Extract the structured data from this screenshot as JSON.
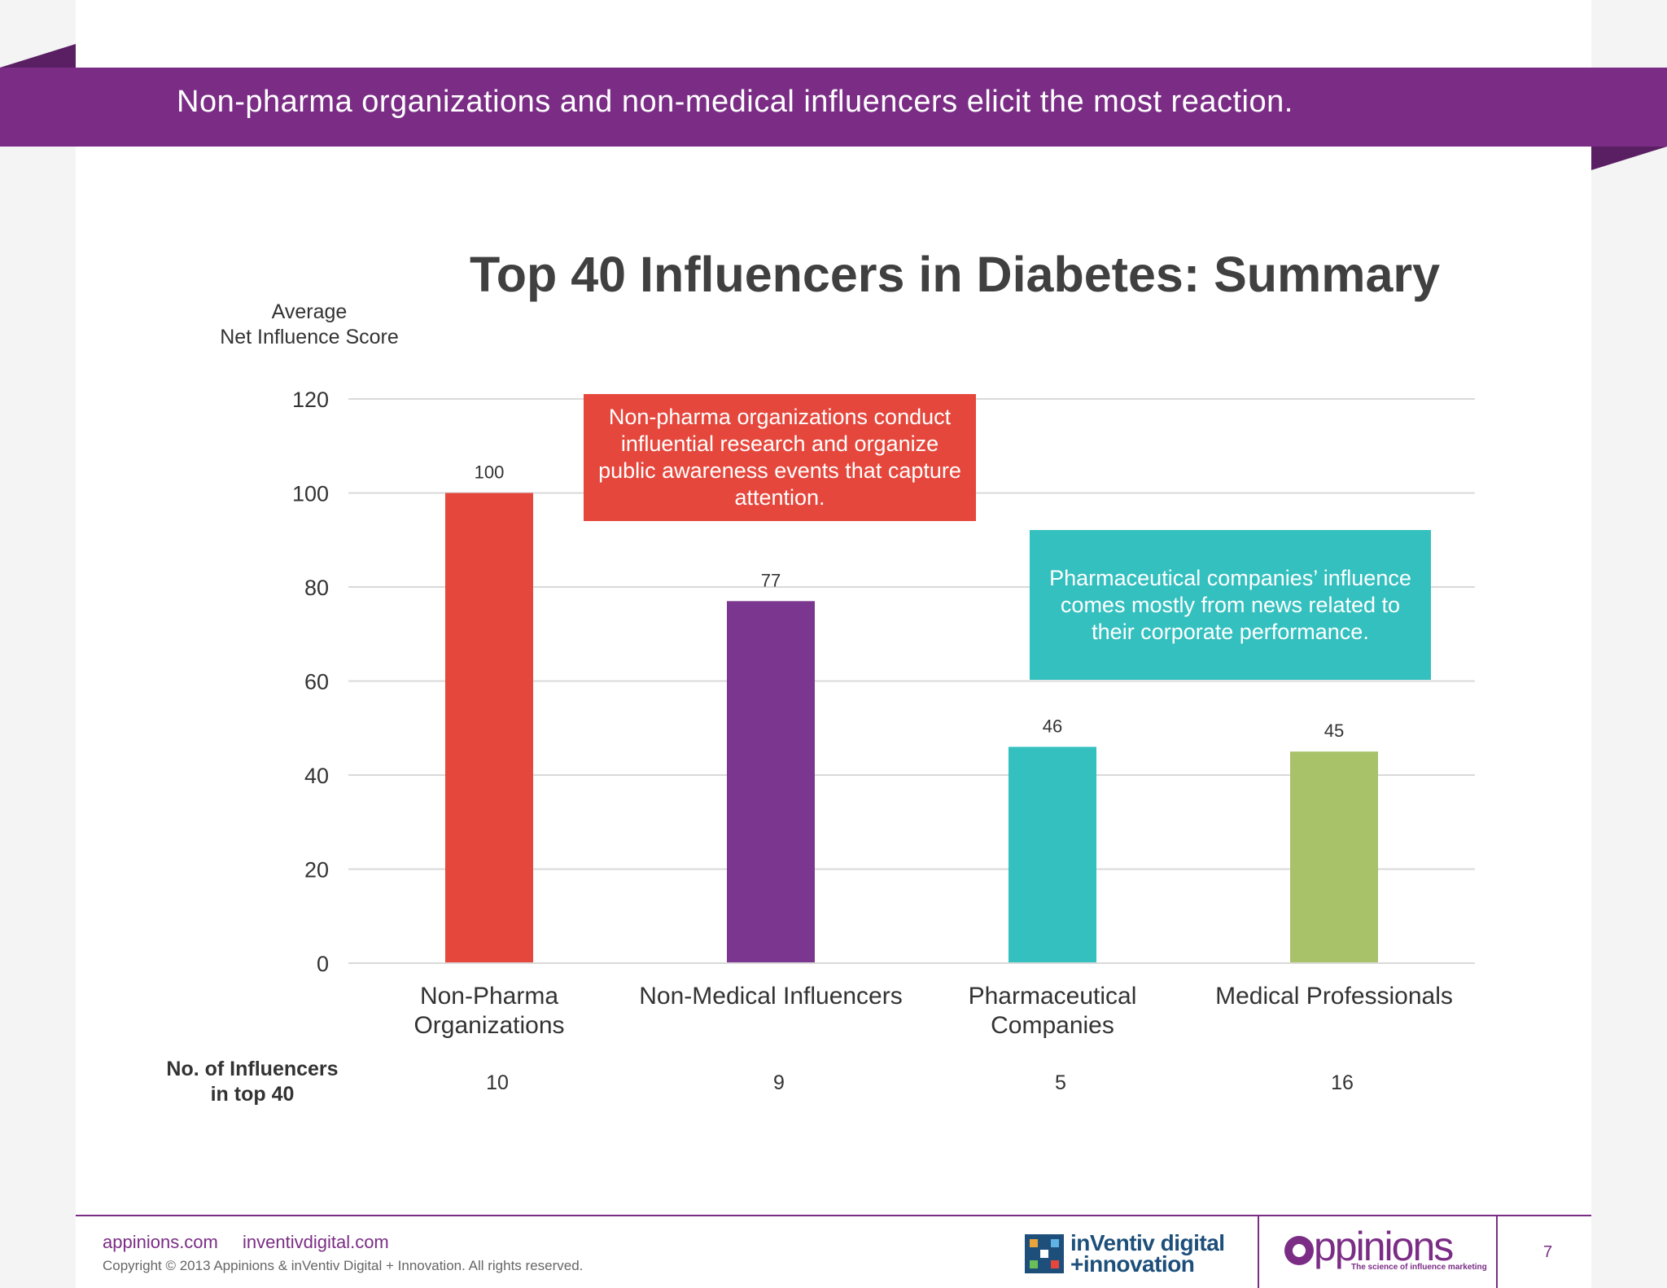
{
  "banner": {
    "title": "Non-pharma organizations and non-medical influencers elicit the most reaction."
  },
  "colors": {
    "brand_purple": "#7b2d86",
    "red": "#e5473c",
    "purple": "#7b378f",
    "teal": "#34c0bf",
    "green": "#a8c26a"
  },
  "chart_data": {
    "type": "bar",
    "title": "Top 40 Influencers in Diabetes: Summary",
    "ylabel": "Average\nNet Influence Score",
    "xlabel": "",
    "categories": [
      "Non-Pharma\nOrganizations",
      "Non-Medical Influencers",
      "Pharmaceutical\nCompanies",
      "Medical Professionals"
    ],
    "values": [
      100,
      77,
      46,
      45
    ],
    "bar_colors": [
      "#e5473c",
      "#7b378f",
      "#34c0bf",
      "#a8c26a"
    ],
    "ylim": [
      0,
      120
    ],
    "yticks": [
      0,
      20,
      40,
      60,
      80,
      100,
      120
    ],
    "grid": true,
    "legend": "none",
    "annotations": [
      "Non-pharma organizations conduct influential research and organize public awareness events that capture attention.",
      "Pharmaceutical companies’ influence comes mostly from news related to their corporate performance."
    ],
    "influencer_counts_label": "No. of Influencers\nin top 40",
    "influencer_counts": [
      10,
      9,
      5,
      16
    ]
  },
  "footer": {
    "links": [
      "appinions.com",
      "inventivdigital.com"
    ],
    "copyright": "Copyright © 2013 Appinions & inVentiv Digital + Innovation. All rights reserved.",
    "logo_inventiv": "inVentiv digital\n+innovation",
    "logo_appinions": "ppinions",
    "logo_appinions_tagline": "The science of influence marketing",
    "page_number": "7"
  }
}
